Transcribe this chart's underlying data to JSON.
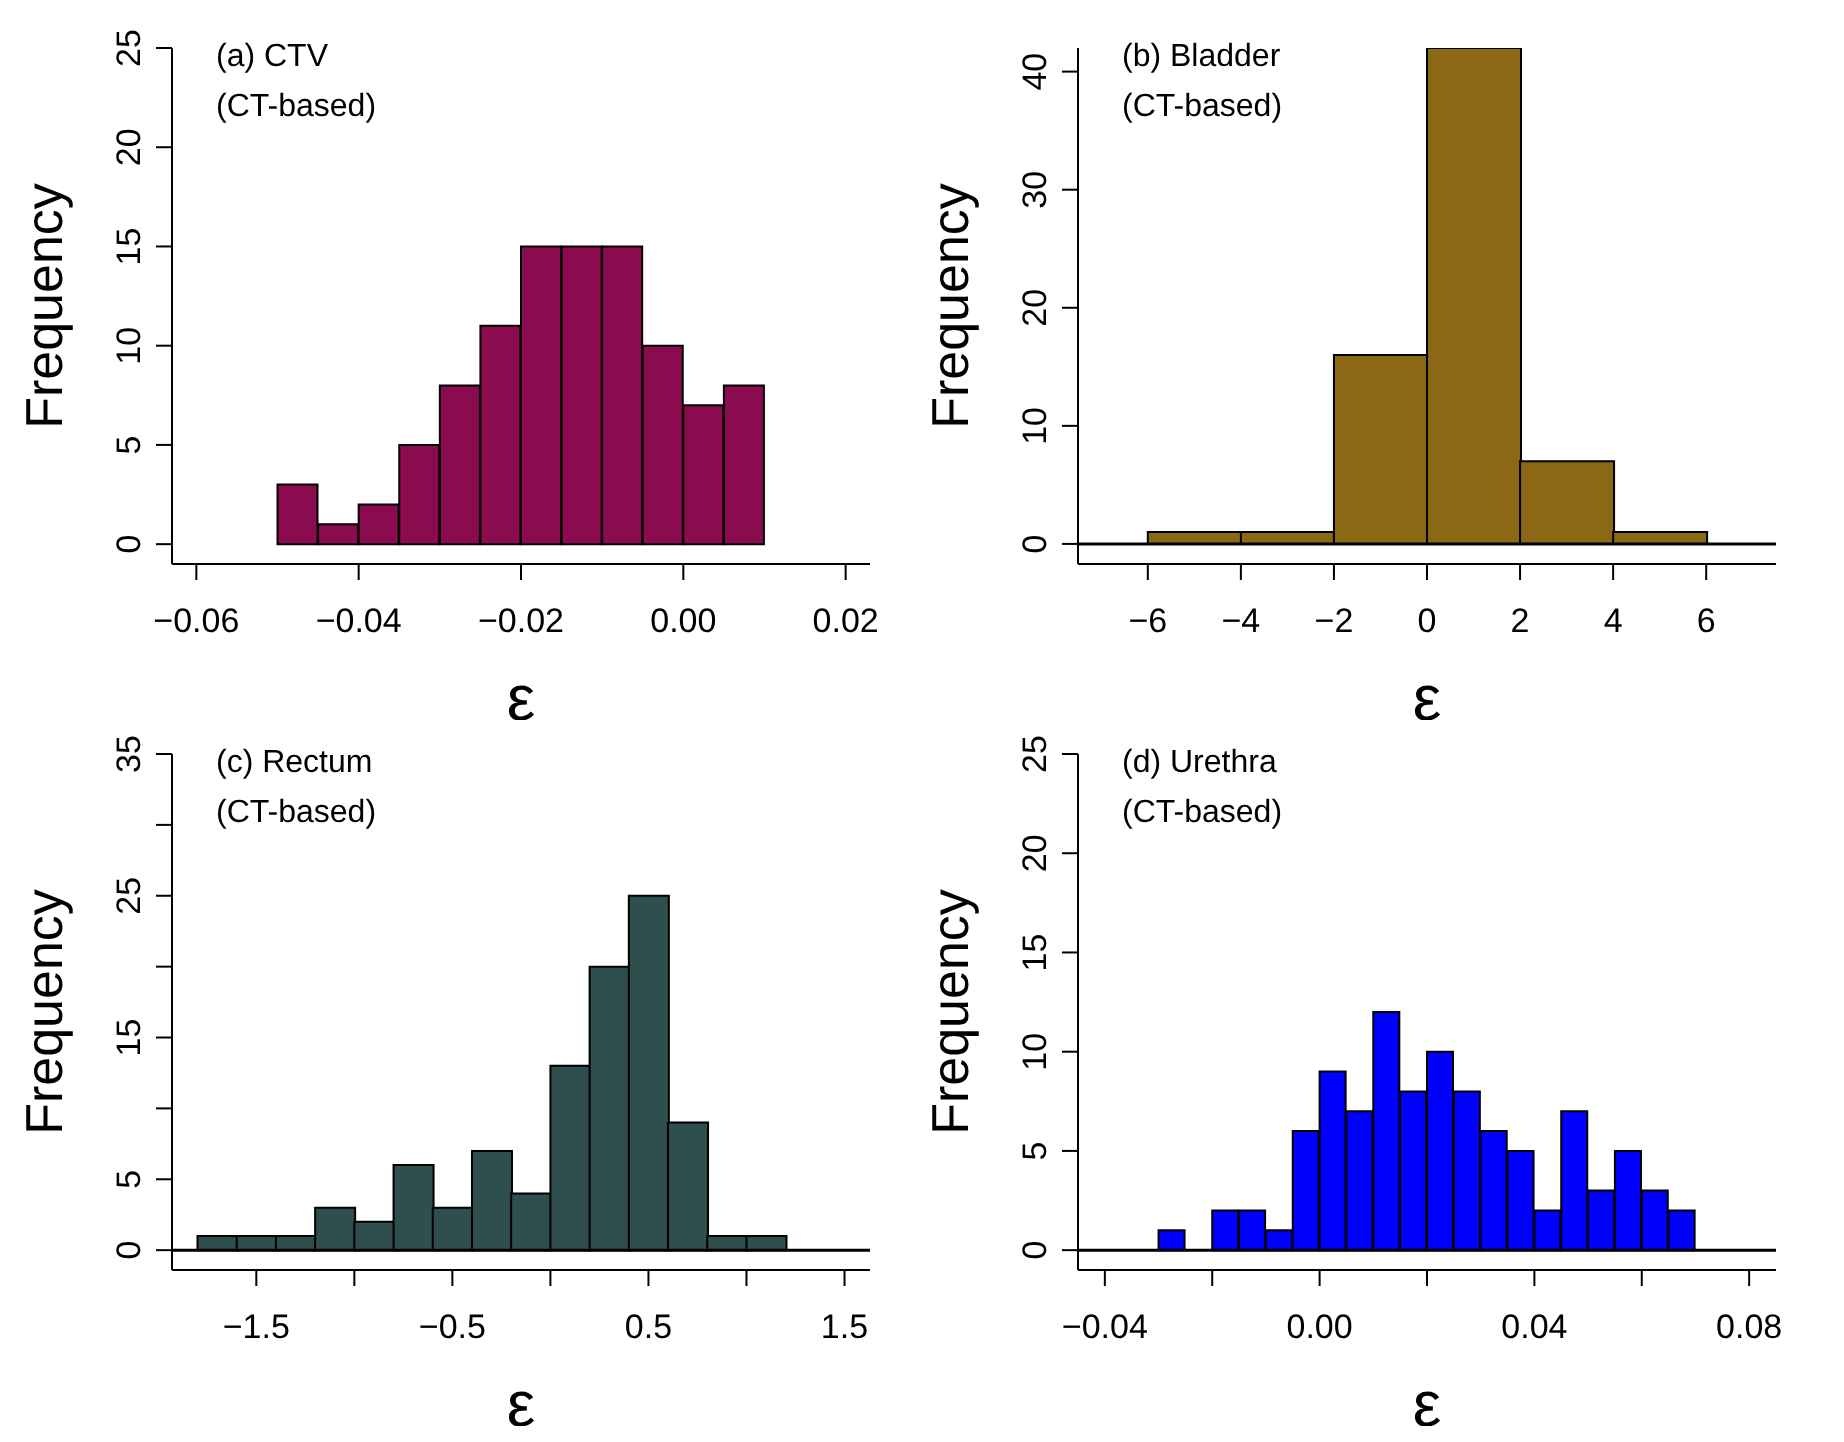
{
  "chart_data": [
    {
      "type": "histogram",
      "title": "(a) CTV",
      "subtitle": "(CT-based)",
      "xlabel": "ε",
      "ylabel": "Frequency",
      "color": "#8b0c4e",
      "bins": [
        -0.05,
        -0.045,
        -0.04,
        -0.035,
        -0.03,
        -0.025,
        -0.02,
        -0.015,
        -0.01,
        -0.005,
        0,
        0.005,
        0.01
      ],
      "values": [
        3,
        1,
        2,
        5,
        8,
        11,
        15,
        15,
        15,
        10,
        7,
        8
      ],
      "xlim": [
        -0.063,
        0.023
      ],
      "xticks": [
        {
          "value": -0.06,
          "label": "−0.06"
        },
        {
          "value": -0.04,
          "label": "−0.04"
        },
        {
          "value": -0.02,
          "label": "−0.02"
        },
        {
          "value": 0,
          "label": "0.00"
        },
        {
          "value": 0.02,
          "label": "0.02"
        }
      ],
      "ylim": [
        -1,
        25
      ],
      "yticks": [
        0,
        5,
        10,
        15,
        20,
        25
      ]
    },
    {
      "type": "histogram",
      "title": "(b) Bladder",
      "subtitle": "(CT-based)",
      "xlabel": "ε",
      "ylabel": "Frequency",
      "color": "#8b6914",
      "bins": [
        -6,
        -4,
        -2,
        0,
        2,
        4,
        6
      ],
      "values": [
        1,
        1,
        16,
        42,
        7,
        1
      ],
      "xlim": [
        -7.5,
        7.5
      ],
      "xticks": [
        {
          "value": -6,
          "label": "−6"
        },
        {
          "value": -4,
          "label": "−4"
        },
        {
          "value": -2,
          "label": "−2"
        },
        0,
        2,
        4,
        6
      ],
      "ylim": [
        -1.7,
        42
      ],
      "yticks": [
        0,
        10,
        20,
        30,
        40
      ],
      "ref_lines": [
        {
          "axis": "y",
          "value": 0
        }
      ]
    },
    {
      "type": "histogram",
      "title": "(c) Rectum",
      "subtitle": "(CT-based)",
      "xlabel": "ε",
      "ylabel": "Frequency",
      "color": "#2f4f4f",
      "bins": [
        -1.8,
        -1.6,
        -1.4,
        -1.2,
        -1.0,
        -0.8,
        -0.6,
        -0.4,
        -0.2,
        0,
        0.2,
        0.4,
        0.6,
        0.8,
        1.0,
        1.2
      ],
      "values": [
        1,
        1,
        1,
        3,
        2,
        6,
        3,
        7,
        4,
        13,
        20,
        25,
        9,
        1,
        1
      ],
      "xlim": [
        -1.93,
        1.63
      ],
      "xticks": [
        {
          "value": -1.5,
          "label": "−1.5"
        },
        {
          "value": -1,
          "label": null
        },
        {
          "value": -0.5,
          "label": "−0.5"
        },
        {
          "value": 0,
          "label": null
        },
        0.5,
        {
          "value": 1,
          "label": null
        },
        1.5
      ],
      "ylim": [
        -1.4,
        35
      ],
      "yticks": [
        0,
        5,
        {
          "value": 10,
          "label": null
        },
        15,
        {
          "value": 20,
          "label": null
        },
        25,
        {
          "value": 30,
          "label": null
        },
        35
      ],
      "ref_lines": [
        {
          "axis": "y",
          "value": 0
        }
      ]
    },
    {
      "type": "histogram",
      "title": "(d) Urethra",
      "subtitle": "(CT-based)",
      "xlabel": "ε",
      "ylabel": "Frequency",
      "color": "#0000ff",
      "bins": [
        -0.03,
        -0.025,
        -0.02,
        -0.015,
        -0.01,
        -0.005,
        0,
        0.005,
        0.01,
        0.015,
        0.02,
        0.025,
        0.03,
        0.035,
        0.04,
        0.045,
        0.05,
        0.055,
        0.06,
        0.065,
        0.07
      ],
      "values": [
        1,
        0,
        2,
        2,
        1,
        6,
        9,
        7,
        12,
        8,
        10,
        8,
        6,
        5,
        2,
        7,
        3,
        5,
        3,
        2
      ],
      "xlim": [
        -0.045,
        0.085
      ],
      "xticks": [
        {
          "value": -0.04,
          "label": "−0.04"
        },
        {
          "value": -0.02,
          "label": null
        },
        {
          "value": 0,
          "label": "0.00"
        },
        {
          "value": 0.02,
          "label": null
        },
        {
          "value": 0.04,
          "label": "0.04"
        },
        {
          "value": 0.06,
          "label": null
        },
        {
          "value": 0.08,
          "label": "0.08"
        }
      ],
      "ylim": [
        -1,
        25
      ],
      "yticks": [
        0,
        5,
        10,
        15,
        20,
        25
      ],
      "ref_lines": [
        {
          "axis": "y",
          "value": 0
        }
      ]
    }
  ]
}
